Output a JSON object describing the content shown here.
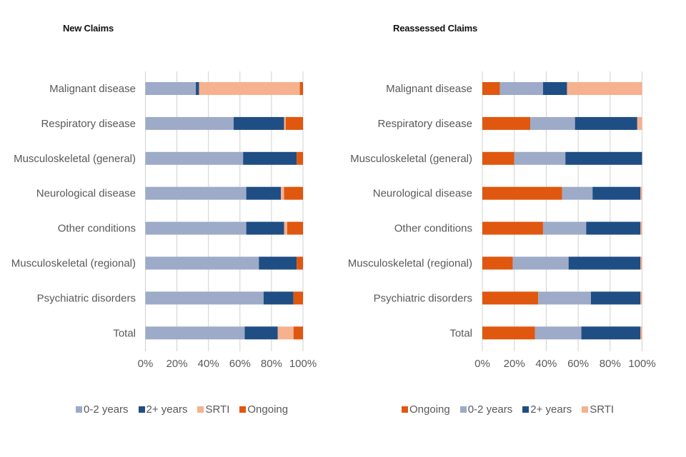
{
  "colors": {
    "0-2 years": "#9dabc9",
    "2+ years": "#1f4e84",
    "SRTI": "#f6b18e",
    "Ongoing": "#e0570f",
    "grid": "#d0d0d0",
    "text": "#595959"
  },
  "chart_data": [
    {
      "type": "bar",
      "orientation": "horizontal",
      "stacked": "percent",
      "title": "New Claims",
      "xlabel": "",
      "ylabel": "",
      "xlim": [
        0,
        100
      ],
      "x_ticks": [
        "0%",
        "20%",
        "40%",
        "60%",
        "80%",
        "100%"
      ],
      "grid": true,
      "legend_position": "bottom",
      "categories": [
        "Malignant disease",
        "Respiratory disease",
        "Musculoskeletal (general)",
        "Neurological disease",
        "Other conditions",
        "Musculoskeletal (regional)",
        "Psychiatric disorders",
        "Total"
      ],
      "series": [
        {
          "name": "0-2 years",
          "values": [
            32,
            56,
            62,
            64,
            64,
            72,
            75,
            63
          ]
        },
        {
          "name": "2+ years",
          "values": [
            2,
            32,
            34,
            22,
            24,
            24,
            19,
            21
          ]
        },
        {
          "name": "SRTI",
          "values": [
            64,
            1,
            0,
            2,
            2,
            0,
            0,
            10
          ]
        },
        {
          "name": "Ongoing",
          "values": [
            2,
            11,
            4,
            12,
            10,
            4,
            6,
            6
          ]
        }
      ]
    },
    {
      "type": "bar",
      "orientation": "horizontal",
      "stacked": "percent",
      "title": "Reassessed Claims",
      "xlabel": "",
      "ylabel": "",
      "xlim": [
        0,
        100
      ],
      "x_ticks": [
        "0%",
        "20%",
        "40%",
        "60%",
        "80%",
        "100%"
      ],
      "grid": true,
      "legend_position": "bottom",
      "categories": [
        "Malignant disease",
        "Respiratory disease",
        "Musculoskeletal (general)",
        "Neurological disease",
        "Other conditions",
        "Musculoskeletal (regional)",
        "Psychiatric disorders",
        "Total"
      ],
      "series": [
        {
          "name": "Ongoing",
          "values": [
            11,
            30,
            20,
            50,
            38,
            19,
            35,
            33
          ]
        },
        {
          "name": "0-2 years",
          "values": [
            27,
            28,
            32,
            19,
            27,
            35,
            33,
            29
          ]
        },
        {
          "name": "2+ years",
          "values": [
            15,
            39,
            48,
            30,
            34,
            45,
            31,
            37
          ]
        },
        {
          "name": "SRTI",
          "values": [
            47,
            3,
            0,
            1,
            1,
            1,
            1,
            1
          ]
        }
      ]
    }
  ]
}
